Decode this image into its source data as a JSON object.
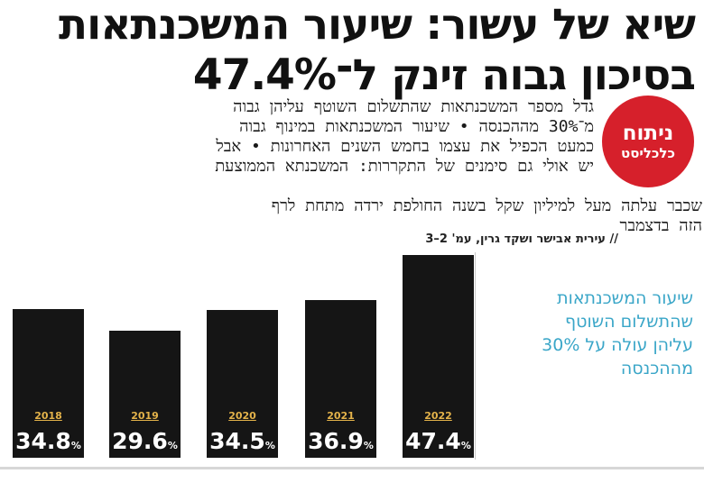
{
  "headline": {
    "line1": "שיא של עשור: שיעור המשכנתאות",
    "line2": "בסיכון גבוה זינק ל־47.4%"
  },
  "badge": {
    "line1": "ניתוח",
    "line2": "כלכליסט"
  },
  "lead": {
    "lines": [
      "גדל מספר המשכנתאות שהתשלום השוטף עליהן גבוה",
      "מ־30% מההכנסה • שיעור המשכנתאות במינוף גבוה",
      "כמעט הכפיל את עצמו בחמש השנים האחרונות • אבל",
      "יש אולי גם סימנים של התקררות: המשכנתא הממוצעת"
    ],
    "continuation": [
      "שכבר עלתה מעל למיליון שקל בשנה החולפת ירדה מתחת לרף",
      "הזה בדצמבר"
    ]
  },
  "credit": "// עירית אבישר ושקד גרין, עמ' 2–3",
  "side_note": {
    "lines": [
      "שיעור המשכנתאות",
      "שהתשלום השוטף",
      "עליהן עולה על 30%",
      "מההכנסה"
    ]
  },
  "chart_data": {
    "type": "bar",
    "categories": [
      "2018",
      "2019",
      "2020",
      "2021",
      "2022"
    ],
    "values": [
      34.8,
      29.6,
      34.5,
      36.9,
      47.4
    ],
    "value_labels": [
      "34.8",
      "29.6",
      "34.5",
      "36.9",
      "47.4"
    ],
    "unit": "%",
    "bar_color": "#151515",
    "year_color": "#e4b34a"
  },
  "colors": {
    "badge": "#d6202b",
    "side_note": "#3aa6c8"
  }
}
